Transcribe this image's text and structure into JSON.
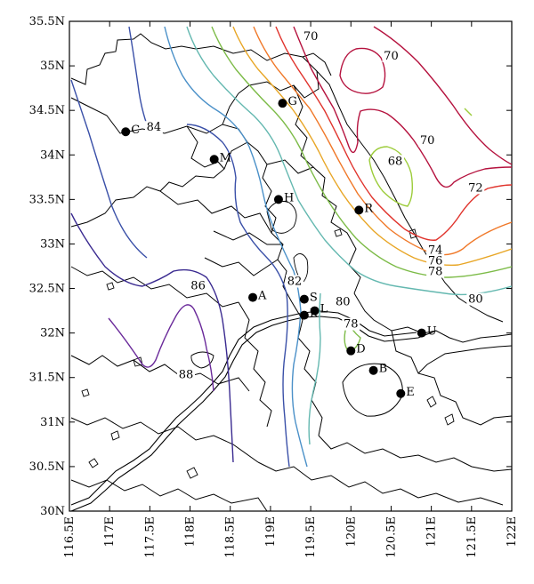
{
  "map": {
    "lon_range": [
      116.5,
      122
    ],
    "lat_range": [
      30,
      35.5
    ],
    "lon_ticks": [
      "116.5E",
      "117E",
      "117.5E",
      "118E",
      "118.5E",
      "119E",
      "119.5E",
      "120E",
      "120.5E",
      "121E",
      "121.5E",
      "122E"
    ],
    "lat_ticks": [
      "30N",
      "30.5N",
      "31N",
      "31.5N",
      "32N",
      "32.5N",
      "33N",
      "33.5N",
      "34N",
      "34.5N",
      "35N",
      "35.5N"
    ],
    "stations": [
      {
        "label": "C",
        "lon": 117.2,
        "lat": 34.26
      },
      {
        "label": "M",
        "lon": 118.3,
        "lat": 33.95
      },
      {
        "label": "G",
        "lon": 119.15,
        "lat": 34.58
      },
      {
        "label": "H",
        "lon": 119.1,
        "lat": 33.5
      },
      {
        "label": "R",
        "lon": 120.1,
        "lat": 33.38
      },
      {
        "label": "A",
        "lon": 118.78,
        "lat": 32.4
      },
      {
        "label": "S",
        "lon": 119.42,
        "lat": 32.38
      },
      {
        "label": "L",
        "lon": 119.55,
        "lat": 32.25
      },
      {
        "label": "K",
        "lon": 119.42,
        "lat": 32.2
      },
      {
        "label": "D",
        "lon": 120.0,
        "lat": 31.8
      },
      {
        "label": "B",
        "lon": 120.28,
        "lat": 31.58
      },
      {
        "label": "E",
        "lon": 120.62,
        "lat": 31.32
      },
      {
        "label": "U",
        "lon": 120.88,
        "lat": 32.0
      }
    ],
    "contour_labels": [
      {
        "text": "70",
        "lon": 119.5,
        "lat": 35.3
      },
      {
        "text": "70",
        "lon": 120.5,
        "lat": 35.08
      },
      {
        "text": "70",
        "lon": 120.95,
        "lat": 34.13
      },
      {
        "text": "68",
        "lon": 120.55,
        "lat": 33.9
      },
      {
        "text": "72",
        "lon": 121.55,
        "lat": 33.6
      },
      {
        "text": "74",
        "lon": 121.05,
        "lat": 32.9
      },
      {
        "text": "76",
        "lon": 121.05,
        "lat": 32.78
      },
      {
        "text": "78",
        "lon": 121.05,
        "lat": 32.66
      },
      {
        "text": "80",
        "lon": 121.55,
        "lat": 32.35
      },
      {
        "text": "80",
        "lon": 119.9,
        "lat": 32.32
      },
      {
        "text": "78",
        "lon": 120.0,
        "lat": 32.07
      },
      {
        "text": "82",
        "lon": 119.3,
        "lat": 32.55
      },
      {
        "text": "84",
        "lon": 117.55,
        "lat": 34.28
      },
      {
        "text": "86",
        "lon": 118.1,
        "lat": 32.5
      },
      {
        "text": "88",
        "lon": 117.95,
        "lat": 31.5
      }
    ],
    "colors": {
      "c70": "#b5123e",
      "c72": "#e0332c",
      "c74": "#f07828",
      "c76": "#e8a626",
      "c78": "#7cbb47",
      "c80": "#64b8b0",
      "c82": "#4a90c8",
      "c84": "#3a50a8",
      "c86": "#3a2a90",
      "c88": "#6a2a9a",
      "c68": "#9ccc3a"
    }
  }
}
